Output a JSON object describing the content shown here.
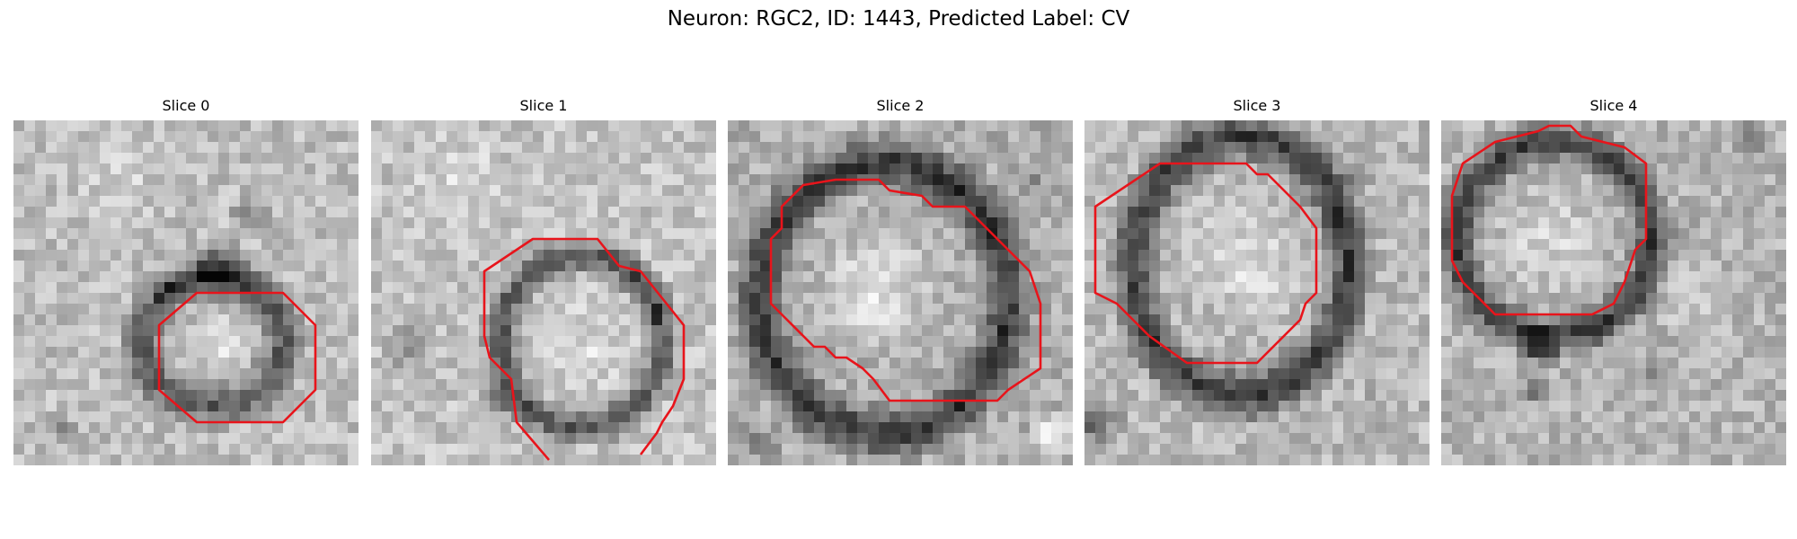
{
  "figure": {
    "title": "Neuron: RGC2, ID: 1443, Predicted Label: CV"
  },
  "slices": [
    {
      "label": "Slice 0"
    },
    {
      "label": "Slice 1"
    },
    {
      "label": "Slice 2"
    },
    {
      "label": "Slice 3"
    },
    {
      "label": "Slice 4"
    }
  ],
  "colors": {
    "contour": "#e8141b",
    "background": "#ffffff"
  }
}
